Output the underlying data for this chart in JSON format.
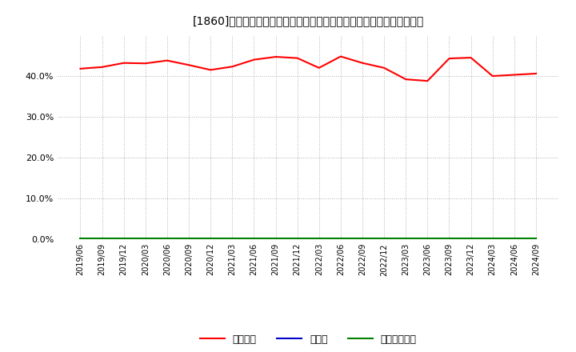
{
  "title": "[1860]　自己資本、のれん、繰延税金資産の総資産に対する比率の推移",
  "x_labels": [
    "2019/06",
    "2019/09",
    "2019/12",
    "2020/03",
    "2020/06",
    "2020/09",
    "2020/12",
    "2021/03",
    "2021/06",
    "2021/09",
    "2021/12",
    "2022/03",
    "2022/06",
    "2022/09",
    "2022/12",
    "2023/03",
    "2023/06",
    "2023/09",
    "2023/12",
    "2024/03",
    "2024/06",
    "2024/09"
  ],
  "equity_ratio": [
    41.8,
    42.2,
    43.2,
    43.1,
    43.8,
    42.7,
    41.5,
    42.3,
    44.0,
    44.7,
    44.4,
    42.0,
    44.8,
    43.2,
    42.0,
    39.2,
    38.8,
    44.3,
    44.5,
    40.0,
    40.3,
    40.6
  ],
  "goodwill_ratio": [
    0.05,
    0.05,
    0.05,
    0.05,
    0.05,
    0.05,
    0.05,
    0.05,
    0.05,
    0.05,
    0.05,
    0.05,
    0.05,
    0.05,
    0.05,
    0.05,
    0.2,
    0.1,
    0.05,
    0.05,
    0.05,
    0.05
  ],
  "deferred_tax_ratio": [
    0.3,
    0.3,
    0.3,
    0.3,
    0.3,
    0.3,
    0.3,
    0.3,
    0.3,
    0.3,
    0.3,
    0.3,
    0.3,
    0.3,
    0.3,
    0.3,
    0.3,
    0.3,
    0.3,
    0.3,
    0.3,
    0.3
  ],
  "equity_color": "#ff0000",
  "goodwill_color": "#0000cc",
  "deferred_tax_color": "#008000",
  "background_color": "#ffffff",
  "plot_bg_color": "#ffffff",
  "grid_color": "#b0b0b0",
  "ylim": [
    0,
    50
  ],
  "yticks": [
    0,
    10,
    20,
    30,
    40
  ],
  "ytick_labels": [
    "0.0%",
    "10.0%",
    "20.0%",
    "30.0%",
    "40.0%"
  ],
  "legend_labels": [
    "自己資本",
    "のれん",
    "繰延税金資産"
  ]
}
